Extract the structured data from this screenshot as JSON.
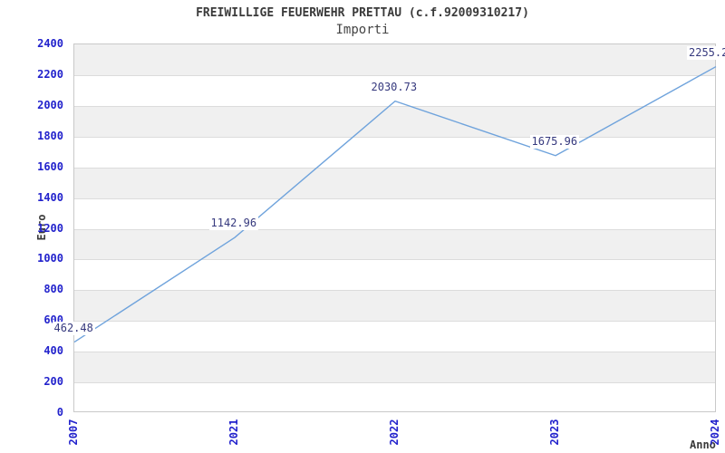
{
  "chart_data": {
    "type": "line",
    "title": "FREIWILLIGE FEUERWEHR PRETTAU (c.f.92009310217)",
    "subtitle": "Importi",
    "xlabel": "Anno",
    "ylabel": "Euro",
    "categories": [
      "2007",
      "2021",
      "2022",
      "2023",
      "2024"
    ],
    "values": [
      462.48,
      1142.96,
      2030.73,
      1675.96,
      2255.2
    ],
    "point_labels": [
      "462.48",
      "1142.96",
      "2030.73",
      "1675.96",
      "2255.2"
    ],
    "ylim": [
      0,
      2400
    ],
    "ytick_step": 200,
    "ytick_labels": [
      "0",
      "200",
      "400",
      "600",
      "800",
      "1000",
      "1200",
      "1400",
      "1600",
      "1800",
      "2000",
      "2200",
      "2400"
    ],
    "grid": "horizontal-bands-alternating",
    "legend": "none",
    "colors": {
      "line": "#6fa3dc",
      "tick_label": "#2222cc",
      "point_label": "#36397e",
      "band_fill": "#f0f0f0",
      "gridline": "#dcdcdc",
      "plot_border": "#c9c9c9",
      "title": "#3a3a3a",
      "subtitle": "#444444",
      "axis_title": "#3a3a3a"
    }
  }
}
